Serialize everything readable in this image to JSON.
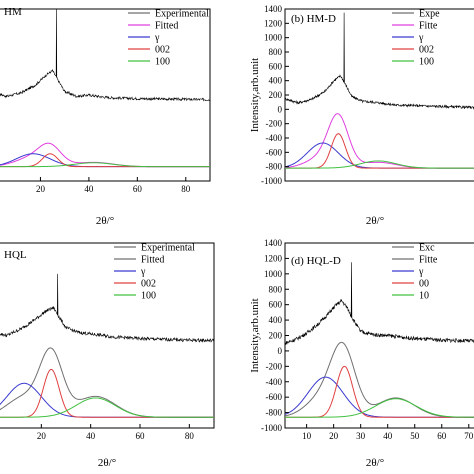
{
  "chart_data": [
    {
      "type": "line",
      "panel_label": "HM",
      "title": "",
      "xlabel": "2θ/°",
      "ylabel": "",
      "xlim": [
        0,
        90
      ],
      "ylim": [
        -1000,
        1400
      ],
      "x_ticks": [
        "20",
        "40",
        "60",
        "80"
      ],
      "x_tick_values": [
        20,
        40,
        60,
        80
      ],
      "y_ticks": [],
      "y_tick_values": [],
      "grid": false,
      "legend": {
        "placement": "top-right",
        "entries": [
          {
            "name": "Experimental",
            "color": "#707070"
          },
          {
            "name": "Fitted",
            "color": "#e040e0"
          },
          {
            "name": "γ",
            "color": "#3a3ad0"
          },
          {
            "name": "002",
            "color": "#e04040"
          },
          {
            "name": "100",
            "color": "#40c040"
          }
        ]
      },
      "experimental": {
        "base": [
          [
            0,
            250
          ],
          [
            6,
            180
          ],
          [
            12,
            230
          ],
          [
            18,
            340
          ],
          [
            22,
            470
          ],
          [
            25,
            540
          ],
          [
            27,
            420
          ],
          [
            30,
            250
          ],
          [
            35,
            180
          ],
          [
            40,
            200
          ],
          [
            45,
            175
          ],
          [
            50,
            160
          ],
          [
            60,
            150
          ],
          [
            70,
            145
          ],
          [
            80,
            140
          ],
          [
            90,
            135
          ]
        ],
        "noise_amplitude": 18,
        "spike": {
          "x": 26.6,
          "y": 1400
        }
      },
      "series": [
        {
          "name": "Fitted",
          "color": "#e040e0",
          "peaks": [
            {
              "center": 24,
              "amplitude": 240,
              "width": 4.5
            },
            {
              "center": 17,
              "amplitude": 130,
              "width": 7
            },
            {
              "center": 42,
              "amplitude": 60,
              "width": 8
            }
          ],
          "baseline": -800
        },
        {
          "name": "γ",
          "color": "#3a3ad0",
          "peaks": [
            {
              "center": 17,
              "amplitude": 180,
              "width": 7
            }
          ],
          "baseline": -800
        },
        {
          "name": "002",
          "color": "#e04040",
          "peaks": [
            {
              "center": 24,
              "amplitude": 180,
              "width": 3.2
            }
          ],
          "baseline": -800
        },
        {
          "name": "100",
          "color": "#40c040",
          "peaks": [
            {
              "center": 42,
              "amplitude": 55,
              "width": 8
            }
          ],
          "baseline": -800
        }
      ]
    },
    {
      "type": "line",
      "panel_label": "(b) HM-D",
      "title": "",
      "xlabel": "2θ/°",
      "ylabel": "Intensity,arb.unit",
      "xlim": [
        0,
        90
      ],
      "ylim": [
        -1000,
        1400
      ],
      "x_ticks": [],
      "x_tick_values": [],
      "y_ticks": [
        "1400",
        "1200",
        "1000",
        "800",
        "600",
        "400",
        "200",
        "0",
        "-200",
        "-400",
        "-600",
        "-800",
        "-1000"
      ],
      "y_tick_values": [
        1400,
        1200,
        1000,
        800,
        600,
        400,
        200,
        0,
        -200,
        -400,
        -600,
        -800,
        -1000
      ],
      "grid": false,
      "legend": {
        "placement": "top-right",
        "entries": [
          {
            "name": "Expe",
            "color": "#707070"
          },
          {
            "name": "Fitte",
            "color": "#e040e0"
          },
          {
            "name": "γ",
            "color": "#3a3ad0"
          },
          {
            "name": "002",
            "color": "#e04040"
          },
          {
            "name": "100",
            "color": "#40c040"
          }
        ]
      },
      "experimental": {
        "base": [
          [
            0,
            150
          ],
          [
            6,
            90
          ],
          [
            12,
            140
          ],
          [
            18,
            250
          ],
          [
            22,
            400
          ],
          [
            25,
            470
          ],
          [
            27,
            360
          ],
          [
            30,
            180
          ],
          [
            35,
            110
          ],
          [
            40,
            100
          ],
          [
            45,
            80
          ],
          [
            50,
            60
          ],
          [
            60,
            50
          ],
          [
            70,
            40
          ],
          [
            80,
            30
          ],
          [
            90,
            25
          ]
        ],
        "noise_amplitude": 18,
        "spike": {
          "x": 26.6,
          "y": 1350
        }
      },
      "series": [
        {
          "name": "Fitted",
          "color": "#e040e0",
          "peaks": [
            {
              "center": 24,
              "amplitude": 660,
              "width": 4.5
            },
            {
              "center": 17,
              "amplitude": 150,
              "width": 7
            },
            {
              "center": 42,
              "amplitude": 80,
              "width": 8
            }
          ],
          "baseline": -820
        },
        {
          "name": "γ",
          "color": "#3a3ad0",
          "peaks": [
            {
              "center": 17,
              "amplitude": 350,
              "width": 7
            }
          ],
          "baseline": -820
        },
        {
          "name": "002",
          "color": "#e04040",
          "peaks": [
            {
              "center": 24,
              "amplitude": 480,
              "width": 3.2
            }
          ],
          "baseline": -820
        },
        {
          "name": "100",
          "color": "#40c040",
          "peaks": [
            {
              "center": 42,
              "amplitude": 100,
              "width": 8
            }
          ],
          "baseline": -820
        }
      ]
    },
    {
      "type": "line",
      "panel_label": "HQL",
      "title": "",
      "xlabel": "2θ/°",
      "ylabel": "",
      "xlim": [
        0,
        90
      ],
      "ylim": [
        -1000,
        1400
      ],
      "x_ticks": [
        "20",
        "40",
        "60",
        "80"
      ],
      "x_tick_values": [
        20,
        40,
        60,
        80
      ],
      "y_ticks": [],
      "y_tick_values": [],
      "grid": false,
      "legend": {
        "placement": "top-right",
        "entries": [
          {
            "name": "Experimental",
            "color": "#707070"
          },
          {
            "name": "Fitted",
            "color": "#707070"
          },
          {
            "name": "γ",
            "color": "#3a3ad0"
          },
          {
            "name": "002",
            "color": "#e04040"
          },
          {
            "name": "100",
            "color": "#40c040"
          }
        ]
      },
      "experimental": {
        "base": [
          [
            0,
            250
          ],
          [
            6,
            200
          ],
          [
            12,
            290
          ],
          [
            18,
            420
          ],
          [
            22,
            520
          ],
          [
            25,
            560
          ],
          [
            27,
            450
          ],
          [
            30,
            300
          ],
          [
            35,
            240
          ],
          [
            40,
            220
          ],
          [
            45,
            200
          ],
          [
            50,
            180
          ],
          [
            60,
            160
          ],
          [
            70,
            150
          ],
          [
            80,
            140
          ],
          [
            90,
            135
          ]
        ],
        "noise_amplitude": 22,
        "spike": {
          "x": 26.6,
          "y": 1000
        }
      },
      "series": [
        {
          "name": "Fitted",
          "color": "#707070",
          "peaks": [
            {
              "center": 24,
              "amplitude": 800,
              "width": 4.6
            },
            {
              "center": 13,
              "amplitude": 260,
              "width": 7
            },
            {
              "center": 42,
              "amplitude": 270,
              "width": 8
            }
          ],
          "baseline": -860
        },
        {
          "name": "γ",
          "color": "#3a3ad0",
          "peaks": [
            {
              "center": 13,
              "amplitude": 440,
              "width": 7
            }
          ],
          "baseline": -860
        },
        {
          "name": "002",
          "color": "#e04040",
          "peaks": [
            {
              "center": 24,
              "amplitude": 620,
              "width": 3.2
            }
          ],
          "baseline": -860
        },
        {
          "name": "100",
          "color": "#40c040",
          "peaks": [
            {
              "center": 42,
              "amplitude": 250,
              "width": 8
            }
          ],
          "baseline": -860
        }
      ]
    },
    {
      "type": "line",
      "panel_label": "(d) HQL-D",
      "title": "",
      "xlabel": "2θ/°",
      "ylabel": "Intensity,arb.unit",
      "xlim": [
        2,
        76
      ],
      "ylim": [
        -1000,
        1400
      ],
      "x_ticks": [
        "10",
        "20",
        "30",
        "40",
        "50",
        "60",
        "70"
      ],
      "x_tick_values": [
        10,
        20,
        30,
        40,
        50,
        60,
        70
      ],
      "y_ticks": [
        "1400",
        "1200",
        "1000",
        "800",
        "600",
        "400",
        "200",
        "0",
        "-200",
        "-400",
        "-600",
        "-800",
        "-1000"
      ],
      "y_tick_values": [
        1400,
        1200,
        1000,
        800,
        600,
        400,
        200,
        0,
        -200,
        -400,
        -600,
        -800,
        -1000
      ],
      "grid": false,
      "legend": {
        "placement": "top-right",
        "entries": [
          {
            "name": "Exc",
            "color": "#707070"
          },
          {
            "name": "Fitte",
            "color": "#707070"
          },
          {
            "name": "γ",
            "color": "#3a3ad0"
          },
          {
            "name": "00",
            "color": "#e04040"
          },
          {
            "name": "10",
            "color": "#40c040"
          }
        ]
      },
      "experimental": {
        "base": [
          [
            2,
            100
          ],
          [
            6,
            150
          ],
          [
            10,
            230
          ],
          [
            14,
            340
          ],
          [
            18,
            480
          ],
          [
            21,
            600
          ],
          [
            23,
            650
          ],
          [
            25,
            560
          ],
          [
            27,
            420
          ],
          [
            30,
            250
          ],
          [
            35,
            210
          ],
          [
            40,
            200
          ],
          [
            45,
            180
          ],
          [
            50,
            160
          ],
          [
            60,
            140
          ],
          [
            70,
            130
          ],
          [
            76,
            125
          ]
        ],
        "noise_amplitude": 25,
        "spike": {
          "x": 26.6,
          "y": 1150
        }
      },
      "series": [
        {
          "name": "Fitted",
          "color": "#707070",
          "peaks": [
            {
              "center": 23.5,
              "amplitude": 840,
              "width": 4.5
            },
            {
              "center": 16,
              "amplitude": 260,
              "width": 6
            },
            {
              "center": 43,
              "amplitude": 250,
              "width": 7
            }
          ],
          "baseline": -860
        },
        {
          "name": "γ",
          "color": "#3a3ad0",
          "peaks": [
            {
              "center": 17,
              "amplitude": 520,
              "width": 6.5
            }
          ],
          "baseline": -860
        },
        {
          "name": "002",
          "color": "#e04040",
          "peaks": [
            {
              "center": 24,
              "amplitude": 660,
              "width": 3
            }
          ],
          "baseline": -860
        },
        {
          "name": "100",
          "color": "#40c040",
          "peaks": [
            {
              "center": 43,
              "amplitude": 240,
              "width": 7.5
            }
          ],
          "baseline": -860
        }
      ]
    }
  ]
}
